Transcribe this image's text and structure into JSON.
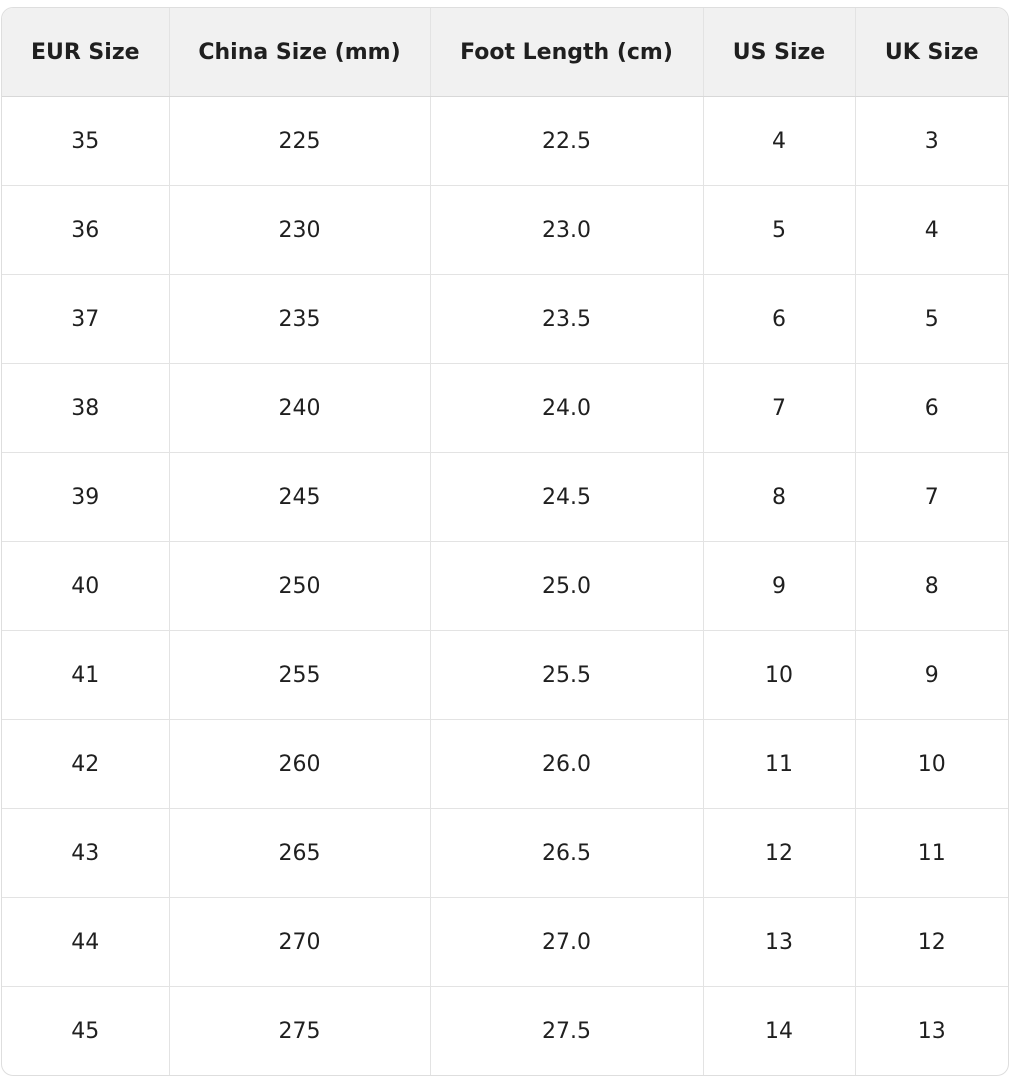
{
  "table": {
    "headers": [
      "EUR Size",
      "China Size (mm)",
      "Foot Length (cm)",
      "US Size",
      "UK Size"
    ],
    "rows": [
      [
        "35",
        "225",
        "22.5",
        "4",
        "3"
      ],
      [
        "36",
        "230",
        "23.0",
        "5",
        "4"
      ],
      [
        "37",
        "235",
        "23.5",
        "6",
        "5"
      ],
      [
        "38",
        "240",
        "24.0",
        "7",
        "6"
      ],
      [
        "39",
        "245",
        "24.5",
        "8",
        "7"
      ],
      [
        "40",
        "250",
        "25.0",
        "9",
        "8"
      ],
      [
        "41",
        "255",
        "25.5",
        "10",
        "9"
      ],
      [
        "42",
        "260",
        "26.0",
        "11",
        "10"
      ],
      [
        "43",
        "265",
        "26.5",
        "12",
        "11"
      ],
      [
        "44",
        "270",
        "27.0",
        "13",
        "12"
      ],
      [
        "45",
        "275",
        "27.5",
        "14",
        "13"
      ]
    ]
  }
}
